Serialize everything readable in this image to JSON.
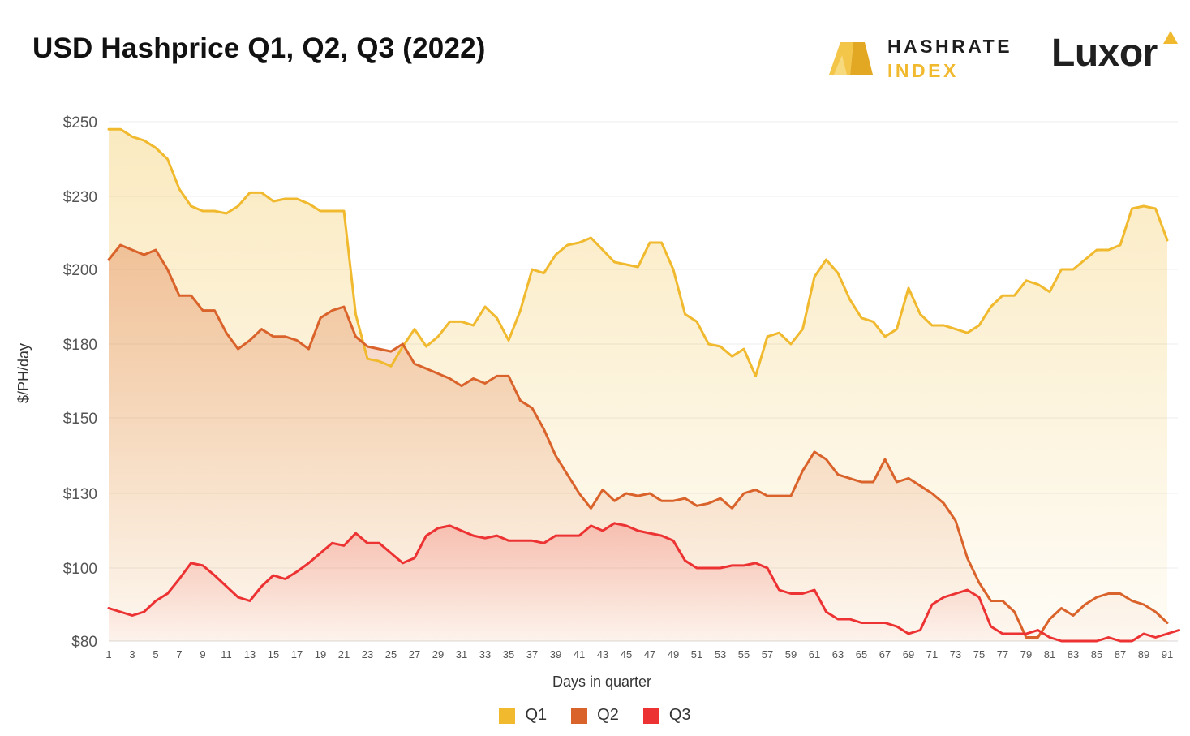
{
  "header": {
    "title": "USD Hashprice Q1, Q2, Q3 (2022)",
    "logo_hashrate_line1": "HASHRATE",
    "logo_hashrate_line2": "INDEX",
    "logo_luxor": "Luxor"
  },
  "chart_data": {
    "type": "area",
    "title": "USD Hashprice Q1, Q2, Q3 (2022)",
    "xlabel": "Days in quarter",
    "ylabel": "$/PH/day",
    "ylim": [
      80,
      250
    ],
    "ytick_values": [
      80,
      100,
      130,
      150,
      180,
      200,
      230,
      250
    ],
    "ytick_labels": [
      "$80",
      "$100",
      "$130",
      "$150",
      "$180",
      "$200",
      "$230",
      "$250"
    ],
    "xtick_labels": [
      "1",
      "3",
      "5",
      "7",
      "9",
      "11",
      "13",
      "15",
      "17",
      "19",
      "21",
      "23",
      "25",
      "27",
      "29",
      "31",
      "33",
      "35",
      "37",
      "39",
      "41",
      "43",
      "45",
      "47",
      "49",
      "51",
      "53",
      "55",
      "57",
      "59",
      "61",
      "63",
      "65",
      "67",
      "69",
      "71",
      "73",
      "75",
      "77",
      "79",
      "81",
      "83",
      "85",
      "87",
      "89",
      "91"
    ],
    "grid": true,
    "legend_position": "bottom",
    "colors": {
      "Q1": "#f0b92e",
      "Q2": "#d9632b",
      "Q3": "#ec3232"
    },
    "series": [
      {
        "name": "Q1",
        "values": [
          248,
          248,
          246,
          245,
          243,
          240,
          232,
          226,
          224,
          224,
          223,
          226,
          231,
          231,
          228,
          229,
          229,
          227,
          224,
          224,
          224,
          188,
          174,
          173,
          171,
          179,
          184,
          179,
          182,
          186,
          186,
          185,
          190,
          187,
          181,
          189,
          200,
          199,
          206,
          210,
          211,
          213,
          208,
          203,
          202,
          201,
          211,
          211,
          200,
          188,
          186,
          180,
          179,
          175,
          178,
          167,
          182,
          183,
          180,
          184,
          198,
          204,
          199,
          192,
          187,
          186,
          182,
          184,
          195,
          188,
          185,
          185,
          184,
          183,
          185,
          190,
          193,
          193,
          197,
          196,
          194,
          200,
          200,
          204,
          208,
          208,
          210,
          225,
          226,
          225,
          212
        ]
      },
      {
        "name": "Q2",
        "values": [
          204,
          210,
          208,
          206,
          208,
          200,
          193,
          193,
          189,
          189,
          183,
          178,
          181,
          184,
          182,
          182,
          181,
          178,
          187,
          189,
          190,
          182,
          179,
          178,
          177,
          180,
          172,
          170,
          168,
          166,
          163,
          166,
          164,
          167,
          167,
          157,
          154,
          147,
          140,
          135,
          130,
          124,
          131,
          127,
          130,
          129,
          130,
          127,
          127,
          128,
          125,
          126,
          128,
          124,
          130,
          131,
          129,
          129,
          129,
          136,
          141,
          139,
          135,
          134,
          133,
          133,
          139,
          133,
          134,
          132,
          130,
          126,
          119,
          104,
          96,
          91,
          91,
          88,
          81,
          81,
          86,
          89,
          87,
          90,
          92,
          93,
          93,
          91,
          90,
          88,
          85
        ]
      },
      {
        "name": "Q3",
        "values": [
          89,
          88,
          87,
          88,
          91,
          93,
          97,
          102,
          101,
          98,
          95,
          92,
          91,
          95,
          98,
          97,
          99,
          102,
          106,
          110,
          109,
          114,
          110,
          110,
          106,
          102,
          104,
          113,
          116,
          117,
          115,
          113,
          112,
          113,
          111,
          111,
          111,
          110,
          113,
          113,
          113,
          117,
          115,
          118,
          117,
          115,
          114,
          113,
          111,
          103,
          100,
          100,
          100,
          101,
          101,
          102,
          100,
          94,
          93,
          93,
          94,
          88,
          86,
          86,
          85,
          85,
          85,
          84,
          82,
          83,
          90,
          92,
          93,
          94,
          92,
          84,
          82,
          82,
          82,
          83,
          81,
          80,
          80,
          80,
          80,
          81,
          80,
          80,
          82,
          81,
          82,
          83
        ]
      }
    ]
  }
}
